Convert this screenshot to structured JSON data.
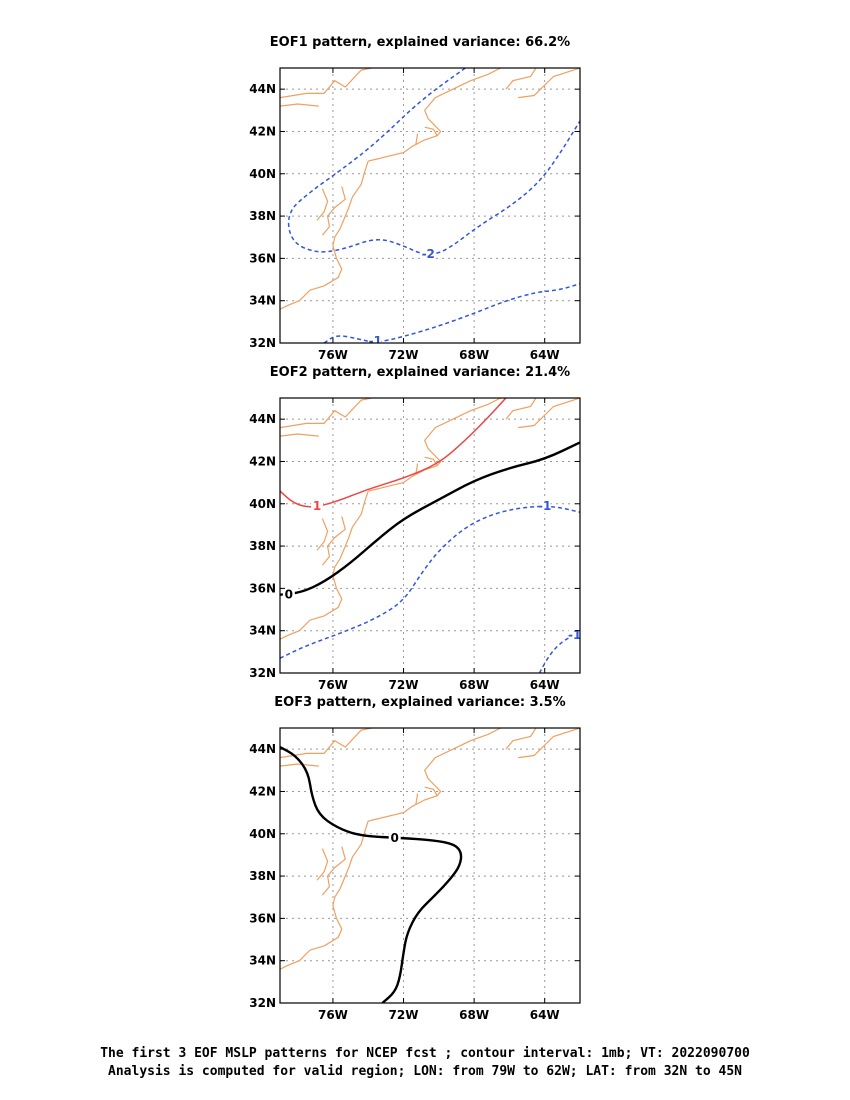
{
  "chart_data": [
    {
      "type": "contour-map",
      "title": "EOF1 pattern, explained variance: 66.2%",
      "x_ticks": [
        "76W",
        "72W",
        "68W",
        "64W"
      ],
      "y_ticks": [
        "32N",
        "34N",
        "36N",
        "38N",
        "40N",
        "42N",
        "44N"
      ],
      "lon_range": [
        -79,
        -62
      ],
      "lat_range": [
        32,
        45
      ],
      "grid": true,
      "contours": [
        {
          "label": "-2",
          "style": "dashed",
          "color": "#3355dd",
          "points": [
            [
              -68.5,
              45
            ],
            [
              -71,
              43.5
            ],
            [
              -73.5,
              41.5
            ],
            [
              -75.5,
              40.2
            ],
            [
              -77.2,
              39.2
            ],
            [
              -78.6,
              38.2
            ],
            [
              -78.4,
              36.8
            ],
            [
              -77,
              36.25
            ],
            [
              -75.5,
              36.4
            ],
            [
              -73.5,
              37
            ],
            [
              -72,
              36.6
            ],
            [
              -71,
              36.2
            ],
            [
              -70.1,
              36.2
            ],
            [
              -69.2,
              36.6
            ],
            [
              -67.8,
              37.5
            ],
            [
              -65.7,
              38.6
            ],
            [
              -64.2,
              39.7
            ],
            [
              -63.1,
              41
            ],
            [
              -62,
              42.5
            ]
          ],
          "label_at": [
            -70.6,
            36.2
          ]
        },
        {
          "label": "-1",
          "style": "dashed",
          "color": "#3355dd",
          "points": [
            [
              -76.5,
              32
            ],
            [
              -75.8,
              32.4
            ],
            [
              -74.6,
              32.2
            ],
            [
              -73.6,
              32
            ],
            [
              -72,
              32.3
            ],
            [
              -70,
              32.8
            ],
            [
              -68,
              33.4
            ],
            [
              -66.2,
              34
            ],
            [
              -64.5,
              34.4
            ],
            [
              -63.2,
              34.5
            ],
            [
              -62,
              34.8
            ]
          ],
          "label_at": [
            -73.6,
            32.1
          ]
        }
      ]
    },
    {
      "type": "contour-map",
      "title": "EOF2 pattern, explained variance: 21.4%",
      "x_ticks": [
        "76W",
        "72W",
        "68W",
        "64W"
      ],
      "y_ticks": [
        "32N",
        "34N",
        "36N",
        "38N",
        "40N",
        "42N",
        "44N"
      ],
      "lon_range": [
        -79,
        -62
      ],
      "lat_range": [
        32,
        45
      ],
      "grid": true,
      "contours": [
        {
          "label": "1",
          "style": "solid",
          "color": "#ee4444",
          "points": [
            [
              -79,
              40.6
            ],
            [
              -78.2,
              40
            ],
            [
              -77.2,
              39.8
            ],
            [
              -75.8,
              40.1
            ],
            [
              -74,
              40.7
            ],
            [
              -72,
              41.2
            ],
            [
              -70,
              41.9
            ],
            [
              -68.5,
              43
            ],
            [
              -67.3,
              44
            ],
            [
              -66.2,
              45
            ]
          ],
          "label_at": [
            -76.9,
            39.9
          ]
        },
        {
          "label": "0",
          "style": "solid",
          "color": "#000000",
          "points": [
            [
              -79,
              35.7
            ],
            [
              -77.8,
              35.8
            ],
            [
              -76.5,
              36.3
            ],
            [
              -75,
              37.2
            ],
            [
              -73.5,
              38.3
            ],
            [
              -72,
              39.3
            ],
            [
              -70,
              40.2
            ],
            [
              -68,
              41.1
            ],
            [
              -66,
              41.7
            ],
            [
              -64,
              42.1
            ],
            [
              -62,
              42.9
            ]
          ],
          "label_at": [
            -78.5,
            35.7
          ]
        },
        {
          "label": "-1",
          "style": "dashed",
          "color": "#3355dd",
          "points": [
            [
              -79,
              32.7
            ],
            [
              -77.5,
              33.3
            ],
            [
              -75.5,
              33.9
            ],
            [
              -73.5,
              34.6
            ],
            [
              -72,
              35.4
            ],
            [
              -71,
              36.7
            ],
            [
              -70,
              37.8
            ],
            [
              -68.5,
              38.9
            ],
            [
              -67,
              39.5
            ],
            [
              -65.5,
              39.8
            ],
            [
              -64,
              39.9
            ],
            [
              -63,
              39.8
            ],
            [
              -62,
              39.6
            ]
          ],
          "label_at": [
            -64,
            39.9
          ]
        },
        {
          "label": "-1",
          "style": "dashed",
          "color": "#3355dd",
          "points": [
            [
              -64.3,
              32
            ],
            [
              -63.7,
              32.9
            ],
            [
              -63,
              33.5
            ],
            [
              -62.3,
              33.8
            ]
          ],
          "label_at": [
            -62.3,
            33.8
          ]
        }
      ]
    },
    {
      "type": "contour-map",
      "title": "EOF3 pattern, explained variance: 3.5%",
      "x_ticks": [
        "76W",
        "72W",
        "68W",
        "64W"
      ],
      "y_ticks": [
        "32N",
        "34N",
        "36N",
        "38N",
        "40N",
        "42N",
        "44N"
      ],
      "lon_range": [
        -79,
        -62
      ],
      "lat_range": [
        32,
        45
      ],
      "grid": true,
      "contours": [
        {
          "label": "0",
          "style": "solid",
          "color": "#000000",
          "points": [
            [
              -79,
              44.1
            ],
            [
              -78.1,
              43.7
            ],
            [
              -77.4,
              42.9
            ],
            [
              -77.2,
              41.8
            ],
            [
              -76.8,
              40.9
            ],
            [
              -75.8,
              40.3
            ],
            [
              -74.5,
              39.9
            ],
            [
              -72.2,
              39.8
            ],
            [
              -70.3,
              39.7
            ],
            [
              -69.1,
              39.5
            ],
            [
              -68.7,
              39.1
            ],
            [
              -68.8,
              38.5
            ],
            [
              -69.3,
              37.9
            ],
            [
              -70.2,
              37.1
            ],
            [
              -71.2,
              36.3
            ],
            [
              -71.8,
              35.3
            ],
            [
              -72,
              34.4
            ],
            [
              -72.2,
              33.2
            ],
            [
              -72.5,
              32.5
            ],
            [
              -73.2,
              32
            ]
          ],
          "label_at": [
            -72.5,
            39.8
          ]
        }
      ]
    }
  ],
  "caption": {
    "line1": "The first 3 EOF MSLP patterns for NCEP fcst ; contour interval: 1mb; VT: 2022090700",
    "line2": "Analysis is computed for valid region; LON: from 79W to 62W; LAT: from 32N to 45N"
  },
  "colors": {
    "coastline": "#f0a060",
    "grid": "#999999",
    "positive": "#ee4444",
    "negative": "#3355dd",
    "zero": "#000000"
  }
}
